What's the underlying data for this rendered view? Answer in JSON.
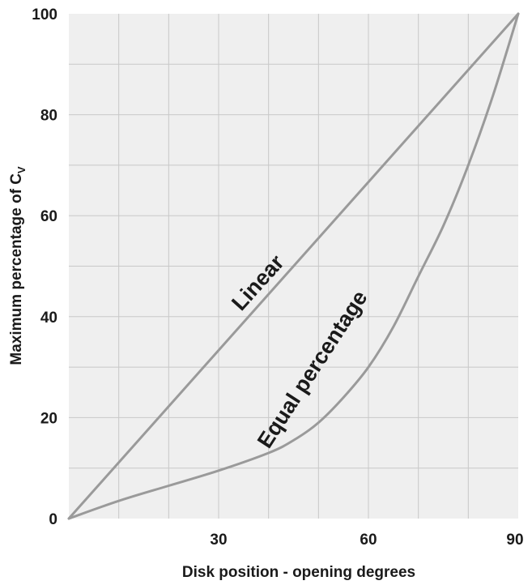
{
  "chart_data": {
    "type": "line",
    "xlabel": "Disk position - opening degrees",
    "ylabel": "Maximum percentage of C",
    "ylabel_subscript": "V",
    "xlim": [
      0,
      90
    ],
    "ylim": [
      0,
      100
    ],
    "x_tick_labels": [
      "30",
      "60",
      "90"
    ],
    "y_tick_labels": [
      "0",
      "20",
      "40",
      "60",
      "80",
      "100"
    ],
    "grid": true,
    "series": [
      {
        "name": "Linear",
        "color": "#9a9a9a",
        "x": [
          0,
          90
        ],
        "y": [
          0,
          100
        ]
      },
      {
        "name": "Equal percentage",
        "color": "#9a9a9a",
        "x": [
          0,
          10,
          20,
          30,
          40,
          45,
          50,
          55,
          60,
          65,
          70,
          75,
          80,
          85,
          90
        ],
        "y": [
          0,
          3.5,
          6.5,
          9.5,
          13,
          15.5,
          19,
          24,
          30,
          38,
          48,
          58,
          70,
          84,
          100
        ]
      }
    ]
  }
}
